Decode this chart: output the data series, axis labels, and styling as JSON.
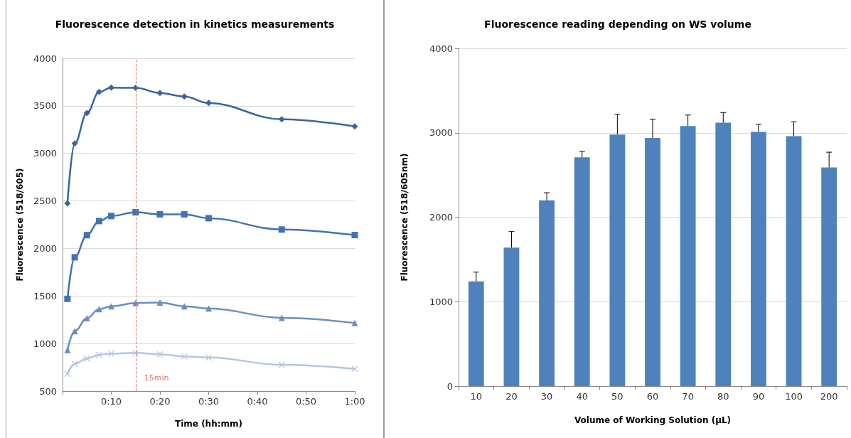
{
  "chart_data": [
    {
      "type": "line",
      "title": "Fluorescence detection in kinetics measurements",
      "xlabel": "Time (hh:mm)",
      "ylabel": "Fluorescence (518/605)",
      "x": [
        1,
        2.5,
        5,
        7.5,
        10,
        15,
        20,
        25,
        30,
        45,
        60
      ],
      "series": [
        {
          "color": "#3b64a0",
          "marker": "diamond",
          "values": [
            2475,
            3104,
            3424,
            3646,
            3692,
            3689,
            3636,
            3598,
            3530,
            3359,
            3283
          ]
        },
        {
          "color": "#4472b0",
          "marker": "square",
          "values": [
            1470,
            1907,
            2140,
            2288,
            2341,
            2381,
            2359,
            2359,
            2318,
            2199,
            2141
          ]
        },
        {
          "color": "#6b8ec4",
          "marker": "triangle",
          "values": [
            932,
            1131,
            1266,
            1362,
            1392,
            1425,
            1432,
            1392,
            1369,
            1271,
            1216
          ]
        },
        {
          "color": "#b3c6e0",
          "marker": "cross",
          "values": [
            681,
            786,
            842,
            882,
            894,
            902,
            887,
            864,
            854,
            776,
            733
          ]
        }
      ],
      "xlim": [
        0,
        60
      ],
      "xticks": [
        {
          "value": 0,
          "label": null
        },
        {
          "value": 10,
          "label": "0:10"
        },
        {
          "value": 20,
          "label": "0:20"
        },
        {
          "value": 30,
          "label": "0:30"
        },
        {
          "value": 40,
          "label": "0:40"
        },
        {
          "value": 50,
          "label": "0:50"
        },
        {
          "value": 60,
          "label": "1:00"
        }
      ],
      "ylim": [
        500,
        4000
      ],
      "yticks": [
        500,
        1000,
        1500,
        2000,
        2500,
        3000,
        3500,
        4000
      ],
      "ref_lines": [
        {
          "axis": "x",
          "value": 15,
          "label": "15min",
          "color": "#e07070",
          "line_style": "dashed"
        }
      ],
      "grid": "y"
    },
    {
      "type": "bar",
      "title": "Fluorescence reading depending on WS volume",
      "xlabel": "Volume of Working Solution (µL)",
      "ylabel": "Fluorescence (518/605nm)",
      "categories": [
        "10",
        "20",
        "30",
        "40",
        "50",
        "60",
        "70",
        "80",
        "90",
        "100",
        "200"
      ],
      "values": [
        1240,
        1640,
        2200,
        2710,
        2980,
        2940,
        3080,
        3120,
        3010,
        2960,
        2590
      ],
      "errors": [
        [
          1240,
          1350
        ],
        [
          1640,
          1830
        ],
        [
          2200,
          2290
        ],
        [
          2710,
          2780
        ],
        [
          2980,
          3220
        ],
        [
          2940,
          3160
        ],
        [
          3080,
          3210
        ],
        [
          3120,
          3240
        ],
        [
          3010,
          3100
        ],
        [
          2960,
          3130
        ],
        [
          2590,
          2770
        ]
      ],
      "color": "#4f81bd",
      "ylim": [
        0,
        4000
      ],
      "yticks": [
        0,
        1000,
        2000,
        3000,
        4000
      ],
      "grid": "y"
    }
  ]
}
